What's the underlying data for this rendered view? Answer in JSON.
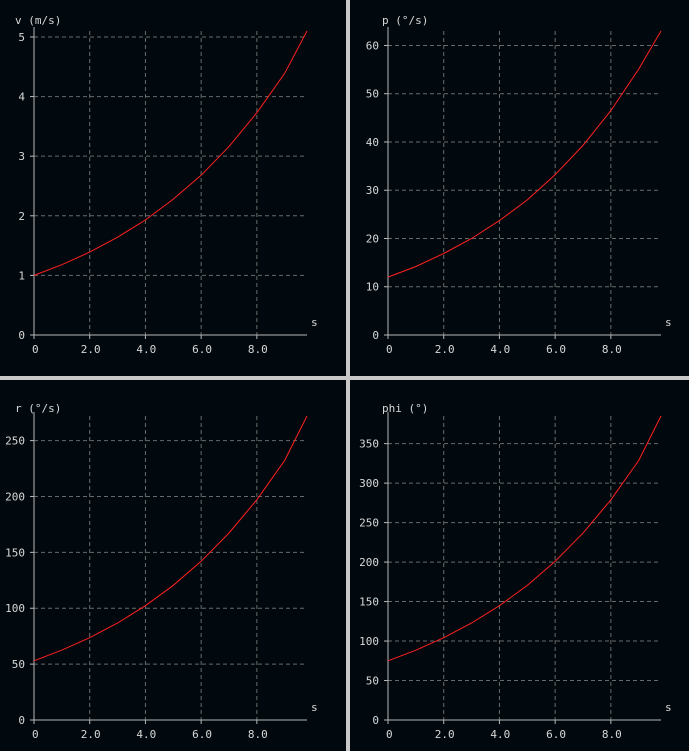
{
  "colors": {
    "background": "#02090e",
    "axis": "#b8b8b8",
    "grid": "#6a6a6a",
    "curve": "#ff2020",
    "text": "#d8d8d8",
    "separator": "#c8c8c8"
  },
  "chart_data": [
    {
      "type": "line",
      "ylabel": "v (m/s)",
      "xlabel": "s",
      "xlim": [
        0,
        9.8
      ],
      "ylim": [
        0,
        5.1
      ],
      "xticks": [
        0,
        2,
        4,
        6,
        8
      ],
      "xtick_labels": [
        "0",
        "2.0",
        "4.0",
        "6.0",
        "8.0"
      ],
      "yticks": [
        0,
        1,
        2,
        3,
        4,
        5
      ],
      "ytick_labels": [
        "0",
        "1",
        "2",
        "3",
        "4",
        "5"
      ],
      "grid": true,
      "series": [
        {
          "x": [
            0,
            1,
            2,
            3,
            4,
            5,
            6,
            7,
            8,
            9,
            9.8
          ],
          "y": [
            1.0,
            1.18,
            1.39,
            1.64,
            1.93,
            2.28,
            2.68,
            3.16,
            3.73,
            4.39,
            5.1
          ]
        }
      ]
    },
    {
      "type": "line",
      "ylabel": "p (°/s)",
      "xlabel": "s",
      "xlim": [
        0,
        9.8
      ],
      "ylim": [
        0,
        63
      ],
      "xticks": [
        0,
        2,
        4,
        6,
        8
      ],
      "xtick_labels": [
        "0",
        "2.0",
        "4.0",
        "6.0",
        "8.0"
      ],
      "yticks": [
        0,
        10,
        20,
        30,
        40,
        50,
        60
      ],
      "ytick_labels": [
        "0",
        "10",
        "20",
        "30",
        "40",
        "50",
        "60"
      ],
      "grid": true,
      "series": [
        {
          "x": [
            0,
            1,
            2,
            3,
            4,
            5,
            6,
            7,
            8,
            9,
            9.8
          ],
          "y": [
            12.0,
            14.2,
            16.9,
            20.0,
            23.7,
            28.0,
            33.2,
            39.3,
            46.5,
            55.1,
            63.0
          ]
        }
      ]
    },
    {
      "type": "line",
      "ylabel": "r (°/s)",
      "xlabel": "s",
      "xlim": [
        0,
        9.8
      ],
      "ylim": [
        0,
        272
      ],
      "xticks": [
        0,
        2,
        4,
        6,
        8
      ],
      "xtick_labels": [
        "0",
        "2.0",
        "4.0",
        "6.0",
        "8.0"
      ],
      "yticks": [
        0,
        50,
        100,
        150,
        200,
        250
      ],
      "ytick_labels": [
        "0",
        "50",
        "100",
        "150",
        "200",
        "250"
      ],
      "grid": true,
      "series": [
        {
          "x": [
            0,
            1,
            2,
            3,
            4,
            5,
            6,
            7,
            8,
            9,
            9.8
          ],
          "y": [
            53,
            62.5,
            73.6,
            86.8,
            102.3,
            120.5,
            142.0,
            167.3,
            197.1,
            232.3,
            272
          ]
        }
      ]
    },
    {
      "type": "line",
      "ylabel": "phi (°)",
      "xlabel": "s",
      "xlim": [
        0,
        9.8
      ],
      "ylim": [
        0,
        385
      ],
      "xticks": [
        0,
        2,
        4,
        6,
        8
      ],
      "xtick_labels": [
        "0",
        "2.0",
        "4.0",
        "6.0",
        "8.0"
      ],
      "yticks": [
        0,
        50,
        100,
        150,
        200,
        250,
        300,
        350
      ],
      "ytick_labels": [
        "0",
        "50",
        "100",
        "150",
        "200",
        "250",
        "300",
        "350"
      ],
      "grid": true,
      "series": [
        {
          "x": [
            0,
            1,
            2,
            3,
            4,
            5,
            6,
            7,
            8,
            9,
            9.8
          ],
          "y": [
            75,
            88.4,
            104.2,
            122.8,
            144.7,
            170.5,
            200.9,
            236.7,
            278.9,
            328.7,
            385
          ]
        }
      ]
    }
  ]
}
